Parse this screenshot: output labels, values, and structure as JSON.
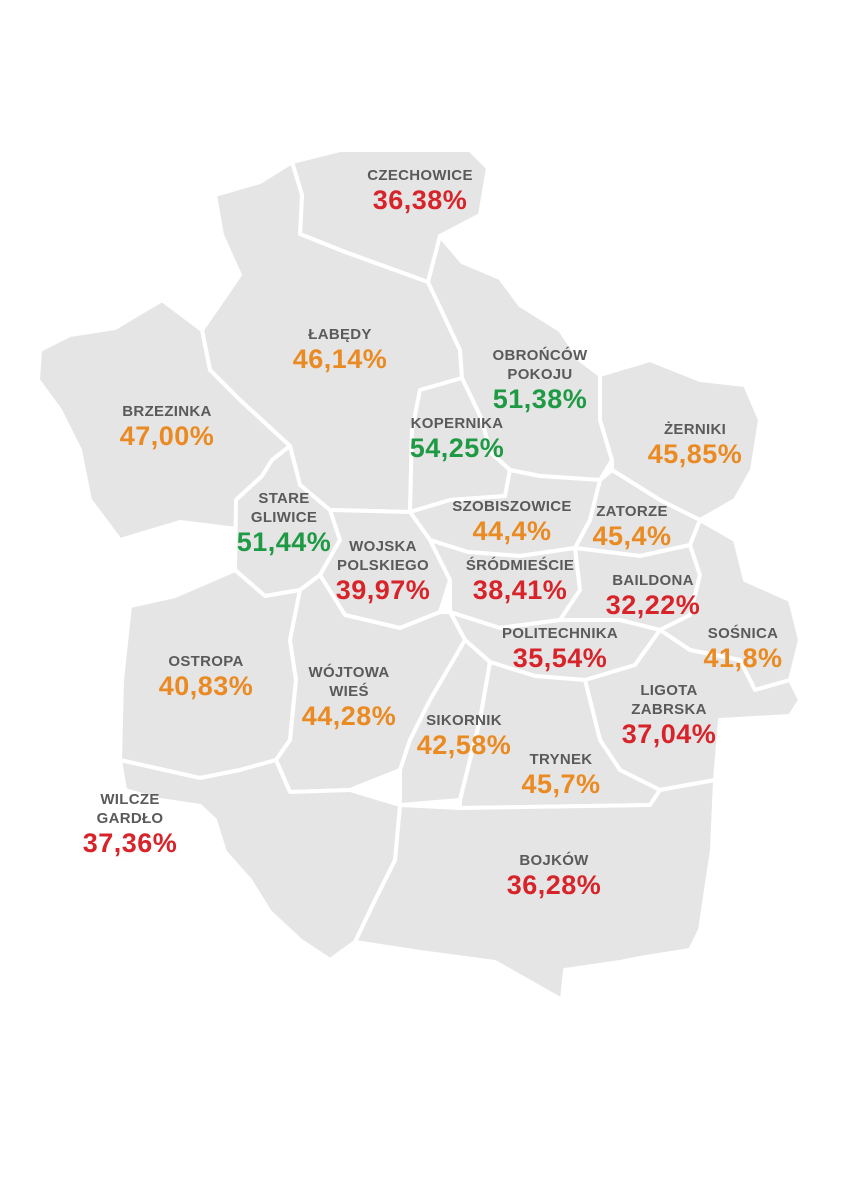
{
  "colors": {
    "red": "#d7242a",
    "orange": "#ea8a22",
    "green": "#1f9a44",
    "district_fill": "#e5e5e5",
    "name_text": "#5a5a5a"
  },
  "districts": [
    {
      "id": "czechowice",
      "name": "CZECHOWICE",
      "value": "36,38%",
      "color": "red"
    },
    {
      "id": "labedy",
      "name": "ŁABĘDY",
      "value": "46,14%",
      "color": "orange"
    },
    {
      "id": "obroncow-pokoju",
      "name": "OBROŃCÓW\nPOKOJU",
      "value": "51,38%",
      "color": "green"
    },
    {
      "id": "brzezinka",
      "name": "BRZEZINKA",
      "value": "47,00%",
      "color": "orange"
    },
    {
      "id": "kopernika",
      "name": "KOPERNIKA",
      "value": "54,25%",
      "color": "green"
    },
    {
      "id": "zerniki",
      "name": "ŻERNIKI",
      "value": "45,85%",
      "color": "orange"
    },
    {
      "id": "stare-gliwice",
      "name": "STARE\nGLIWICE",
      "value": "51,44%",
      "color": "green"
    },
    {
      "id": "szobiszowice",
      "name": "SZOBISZOWICE",
      "value": "44,4%",
      "color": "orange"
    },
    {
      "id": "zatorze",
      "name": "ZATORZE",
      "value": "45,4%",
      "color": "orange"
    },
    {
      "id": "wojska-polskiego",
      "name": "WOJSKA\nPOLSKIEGO",
      "value": "39,97%",
      "color": "red"
    },
    {
      "id": "srodmiescie",
      "name": "ŚRÓDMIEŚCIE",
      "value": "38,41%",
      "color": "red"
    },
    {
      "id": "baildona",
      "name": "BAILDONA",
      "value": "32,22%",
      "color": "red"
    },
    {
      "id": "sosnica",
      "name": "SOŚNICA",
      "value": "41,8%",
      "color": "orange"
    },
    {
      "id": "politechnika",
      "name": "POLITECHNIKA",
      "value": "35,54%",
      "color": "red"
    },
    {
      "id": "ostropa",
      "name": "OSTROPA",
      "value": "40,83%",
      "color": "orange"
    },
    {
      "id": "wojtowa-wies",
      "name": "WÓJTOWA\nWIEŚ",
      "value": "44,28%",
      "color": "orange"
    },
    {
      "id": "ligota-zabrska",
      "name": "LIGOTA\nZABRSKA",
      "value": "37,04%",
      "color": "red"
    },
    {
      "id": "sikornik",
      "name": "SIKORNIK",
      "value": "42,58%",
      "color": "orange"
    },
    {
      "id": "trynek",
      "name": "TRYNEK",
      "value": "45,7%",
      "color": "orange"
    },
    {
      "id": "wilcze-gardlo",
      "name": "WILCZE\nGARDŁO",
      "value": "37,36%",
      "color": "red"
    },
    {
      "id": "bojkow",
      "name": "BOJKÓW",
      "value": "36,28%",
      "color": "red"
    }
  ]
}
